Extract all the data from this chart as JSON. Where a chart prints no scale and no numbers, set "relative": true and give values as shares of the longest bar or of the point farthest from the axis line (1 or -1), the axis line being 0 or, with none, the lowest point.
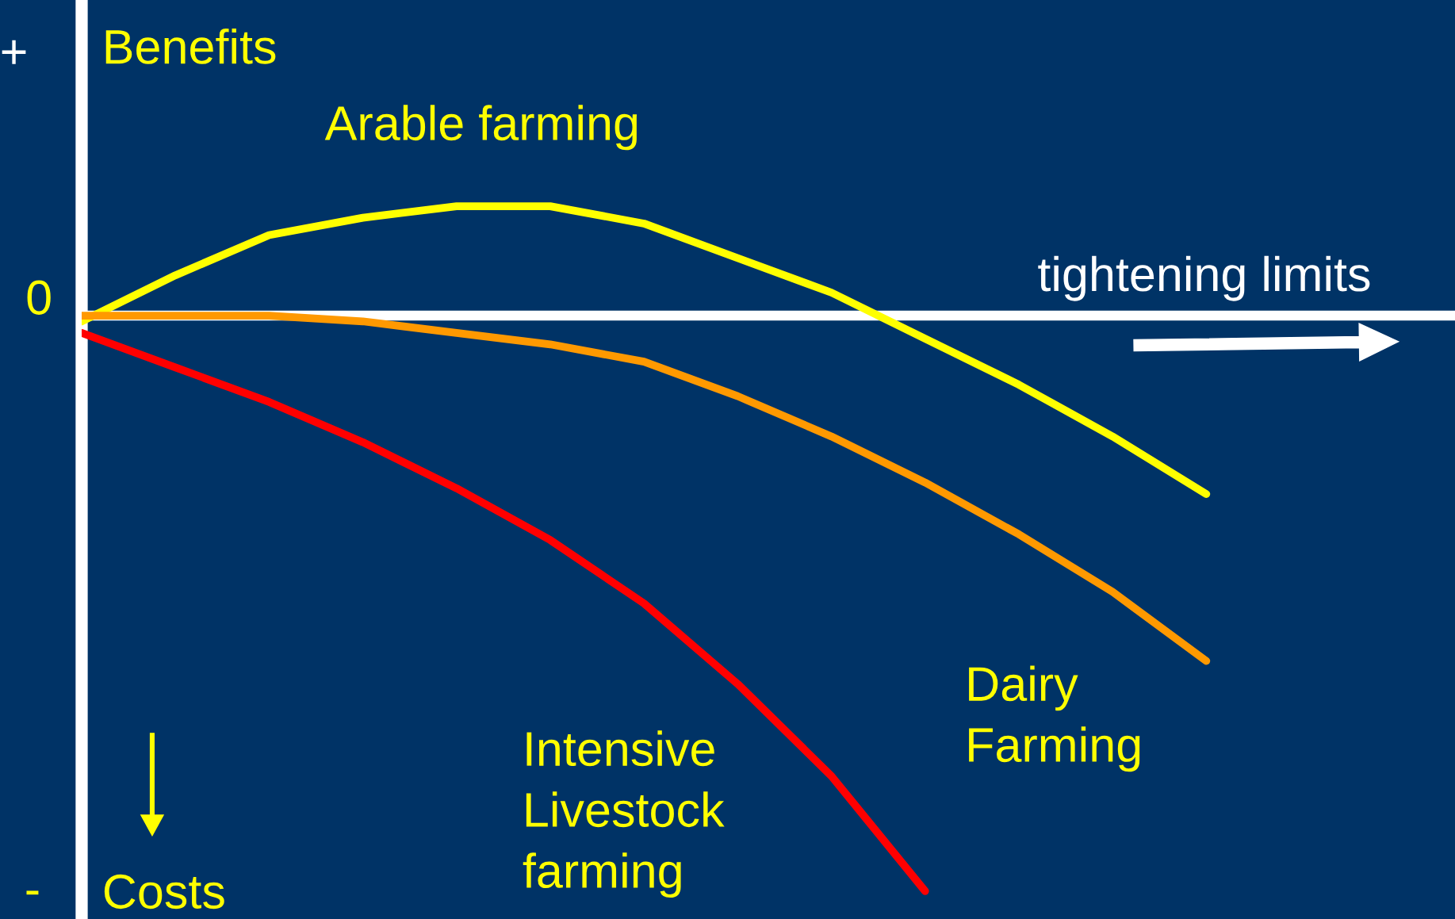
{
  "chart_data": {
    "type": "line",
    "relative": true,
    "legend": false,
    "marker": "none",
    "line_style": "solid",
    "categories": [
      null,
      null,
      null,
      null,
      null,
      null,
      null,
      null,
      null,
      null,
      null,
      null,
      null
    ],
    "series": [
      {
        "name": "Arable farming",
        "color": "#ffff00",
        "values": [
          -0.01,
          0.07,
          0.14,
          0.17,
          0.19,
          0.19,
          0.16,
          0.1,
          0.04,
          -0.04,
          -0.12,
          -0.21,
          -0.31
        ]
      },
      {
        "name": "Dairy\nFarming",
        "color": "#ff9900",
        "values": [
          0.0,
          0.0,
          0.0,
          -0.01,
          -0.03,
          -0.05,
          -0.08,
          -0.14,
          -0.21,
          -0.29,
          -0.38,
          -0.48,
          -0.6
        ]
      },
      {
        "name": "Intensive\nLivestock\nfarming",
        "color": "#ff0000",
        "values": [
          -0.03,
          -0.09,
          -0.15,
          -0.22,
          -0.3,
          -0.39,
          -0.5,
          -0.64,
          -0.8,
          -1.0,
          null,
          null,
          null
        ]
      }
    ],
    "annotations": [
      "+",
      "Benefits",
      "0",
      "-",
      "Costs",
      "tightening limits"
    ]
  }
}
